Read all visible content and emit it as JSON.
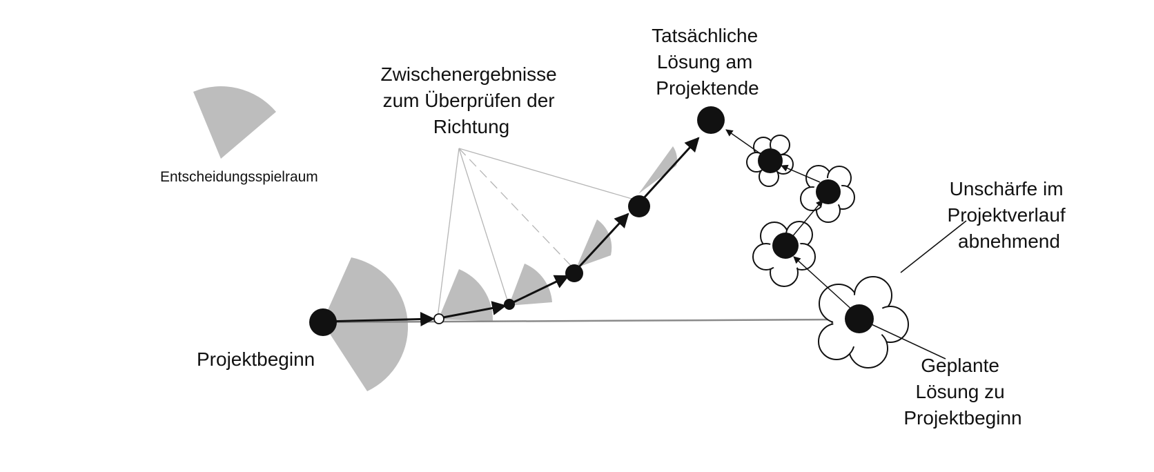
{
  "labels": {
    "legend": "Entscheidungsspielraum",
    "intermediate": [
      "Zwischenergebnisse",
      "zum Überprüfen der",
      "Richtung"
    ],
    "actual": [
      "Tatsächliche",
      "Lösung am",
      "Projektende"
    ],
    "uncertainty": [
      "Unschärfe im",
      "Projektverlauf",
      "abnehmend"
    ],
    "start": "Projektbeginn",
    "planned": [
      "Geplante",
      "Lösung zu",
      "Projektbeginn"
    ]
  },
  "colors": {
    "ink": "#111111",
    "sector": "#bdbdbd",
    "sector_dark": "#9a9a9a",
    "guide": "#b5b5b5",
    "planned_line": "#8a8a8a",
    "background": "#ffffff"
  }
}
